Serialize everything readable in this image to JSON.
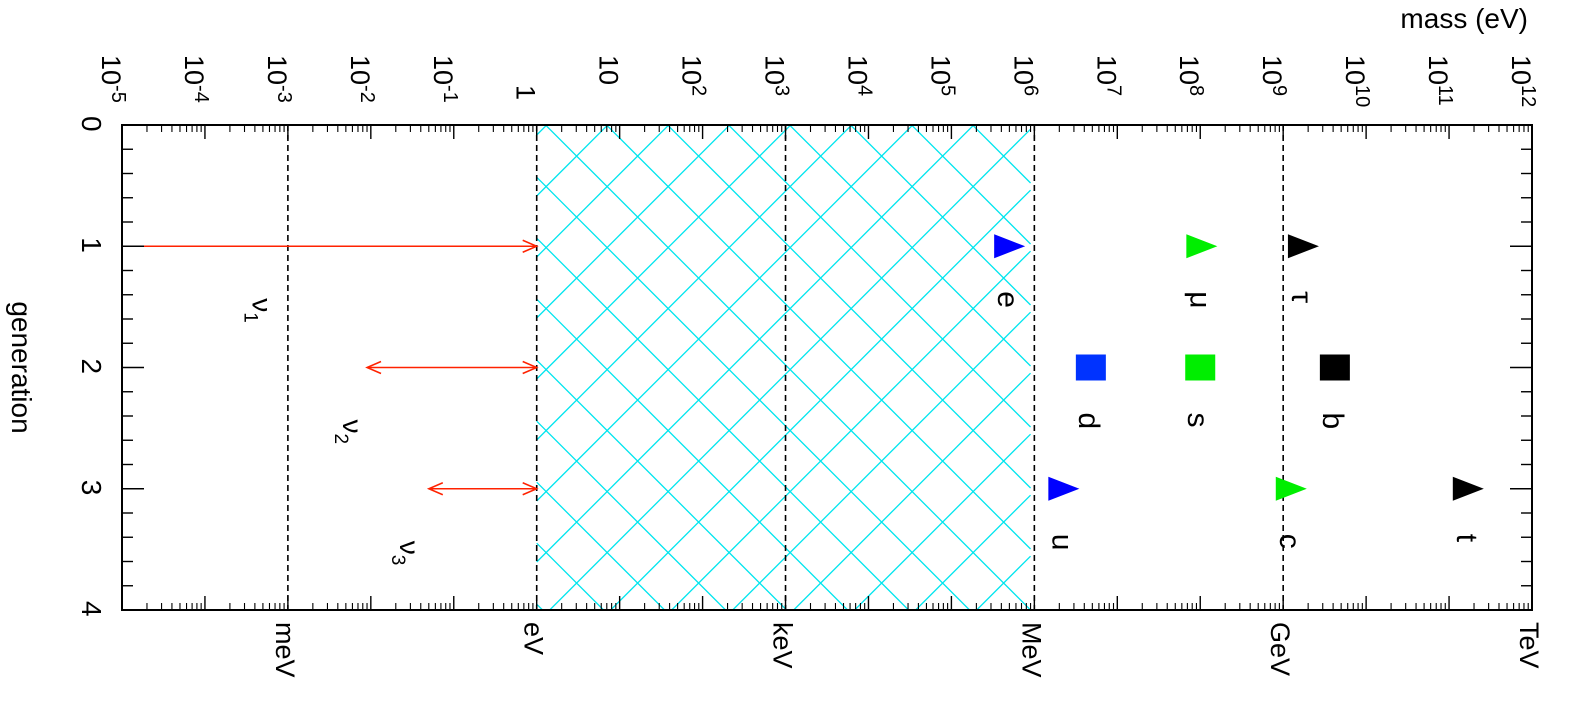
{
  "chart_data": {
    "type": "scatter",
    "xlabel": "mass (eV)",
    "ylabel": "generation",
    "xscale": "log",
    "xlim": [
      1e-05,
      1000000000000
    ],
    "ylim": [
      0,
      4
    ],
    "y_ticks": [
      "0",
      "1",
      "2",
      "3",
      "4"
    ],
    "x_ticks": [
      {
        "base": "10",
        "exp": "-5",
        "value": 1e-05
      },
      {
        "base": "10",
        "exp": "-4",
        "value": 0.0001
      },
      {
        "base": "10",
        "exp": "-3",
        "value": 0.001
      },
      {
        "base": "10",
        "exp": "-2",
        "value": 0.01
      },
      {
        "base": "10",
        "exp": "-1",
        "value": 0.1
      },
      {
        "base": "1",
        "exp": "",
        "value": 1
      },
      {
        "base": "10",
        "exp": "",
        "value": 10
      },
      {
        "base": "10",
        "exp": "2",
        "value": 100
      },
      {
        "base": "10",
        "exp": "3",
        "value": 1000
      },
      {
        "base": "10",
        "exp": "4",
        "value": 10000
      },
      {
        "base": "10",
        "exp": "5",
        "value": 100000
      },
      {
        "base": "10",
        "exp": "6",
        "value": 1000000
      },
      {
        "base": "10",
        "exp": "7",
        "value": 10000000
      },
      {
        "base": "10",
        "exp": "8",
        "value": 100000000
      },
      {
        "base": "10",
        "exp": "9",
        "value": 1000000000
      },
      {
        "base": "10",
        "exp": "10",
        "value": 10000000000
      },
      {
        "base": "10",
        "exp": "11",
        "value": 100000000000
      },
      {
        "base": "10",
        "exp": "12",
        "value": 1000000000000
      }
    ],
    "unit_lines": [
      {
        "label": "meV",
        "value": 0.001
      },
      {
        "label": "eV",
        "value": 1
      },
      {
        "label": "keV",
        "value": 1000
      },
      {
        "label": "MeV",
        "value": 1000000
      },
      {
        "label": "GeV",
        "value": 1000000000
      },
      {
        "label": "TeV",
        "value": 1000000000000
      }
    ],
    "excluded_region": {
      "from": 1,
      "to": 900000,
      "color": "#00e5ee"
    },
    "particles": [
      {
        "label": "e",
        "generation": 1,
        "mass": 511000,
        "marker": "triangle",
        "color": "#0000ff"
      },
      {
        "label": "μ",
        "generation": 1,
        "mass": 106000000,
        "marker": "triangle",
        "color": "#00ee00"
      },
      {
        "label": "τ",
        "generation": 1,
        "mass": 1780000000,
        "marker": "triangle",
        "color": "#000000"
      },
      {
        "label": "d",
        "generation": 2,
        "mass": 4800000,
        "marker": "square",
        "color": "#0033ff"
      },
      {
        "label": "s",
        "generation": 2,
        "mass": 100000000,
        "marker": "square",
        "color": "#00ee00"
      },
      {
        "label": "b",
        "generation": 2,
        "mass": 4200000000,
        "marker": "square",
        "color": "#000000"
      },
      {
        "label": "u",
        "generation": 3,
        "mass": 2300000,
        "marker": "triangle",
        "color": "#0000ff"
      },
      {
        "label": "c",
        "generation": 3,
        "mass": 1270000000,
        "marker": "triangle",
        "color": "#00ee00"
      },
      {
        "label": "t",
        "generation": 3,
        "mass": 173000000000,
        "marker": "triangle",
        "color": "#000000"
      }
    ],
    "neutrinos": [
      {
        "label": "ν",
        "sub": "1",
        "generation": 1,
        "from": 1e-05,
        "to": 1,
        "arrow_start": false
      },
      {
        "label": "ν",
        "sub": "2",
        "generation": 2,
        "from": 0.009,
        "to": 1,
        "arrow_start": true
      },
      {
        "label": "ν",
        "sub": "3",
        "generation": 3,
        "from": 0.05,
        "to": 1,
        "arrow_start": true
      }
    ],
    "arrow_color": "#ff2200",
    "grid": false
  }
}
